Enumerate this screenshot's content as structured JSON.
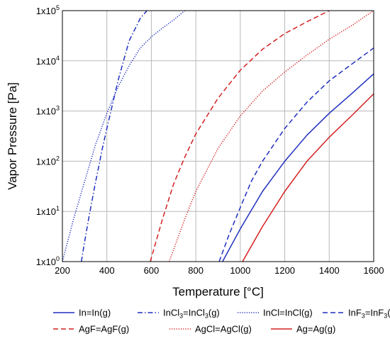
{
  "chart_data": {
    "type": "line",
    "title": "",
    "xlabel": "Temperature [°C]",
    "ylabel": "Vapor Pressure [Pa]",
    "xlim": [
      200,
      1600
    ],
    "ylim": [
      1,
      100000
    ],
    "yscale": "log",
    "grid": true,
    "legend_position": "bottom",
    "x_ticks": [
      "200",
      "400",
      "600",
      "800",
      "1000",
      "1200",
      "1400",
      "1600"
    ],
    "y_ticks": [
      {
        "base": "1x10",
        "exp": "0"
      },
      {
        "base": "1x10",
        "exp": "1"
      },
      {
        "base": "1x10",
        "exp": "2"
      },
      {
        "base": "1x10",
        "exp": "3"
      },
      {
        "base": "1x10",
        "exp": "4"
      },
      {
        "base": "1x10",
        "exp": "5"
      }
    ],
    "series": [
      {
        "name": "In=In(g)",
        "legend_parts": [
          {
            "t": "In=In(g)"
          }
        ],
        "color": "#1f2fbf",
        "dash": "solid",
        "x": [
          920,
          1000,
          1100,
          1200,
          1300,
          1400,
          1500,
          1600
        ],
        "y": [
          1,
          4.5,
          25,
          100,
          330,
          900,
          2200,
          5500
        ]
      },
      {
        "name": "InCl3=InCl3(g)",
        "legend_parts": [
          {
            "t": "InCl"
          },
          {
            "t": "3",
            "sub": true
          },
          {
            "t": "=InCl"
          },
          {
            "t": "3",
            "sub": true
          },
          {
            "t": "(g)"
          }
        ],
        "color": "#1f2fbf",
        "dash": "dashdot",
        "x": [
          285,
          300,
          320,
          350,
          380,
          400,
          450,
          500,
          550,
          580
        ],
        "y": [
          1,
          2.5,
          8,
          40,
          180,
          450,
          4000,
          25000,
          70000,
          100000
        ]
      },
      {
        "name": "InCl=InCl(g)",
        "legend_parts": [
          {
            "t": "InCl=InCl(g)"
          }
        ],
        "color": "#1f2fbf",
        "dash": "dotted",
        "x": [
          200,
          250,
          300,
          350,
          400,
          450,
          500,
          550,
          600,
          650,
          700,
          750
        ],
        "y": [
          1,
          7,
          40,
          220,
          900,
          3000,
          8000,
          18000,
          30000,
          45000,
          65000,
          100000
        ]
      },
      {
        "name": "InF3=InF3(g)",
        "legend_parts": [
          {
            "t": "InF"
          },
          {
            "t": "3",
            "sub": true
          },
          {
            "t": "=InF"
          },
          {
            "t": "3",
            "sub": true
          },
          {
            "t": "(g)"
          }
        ],
        "color": "#1f2fbf",
        "dash": "dashed",
        "x": [
          905,
          950,
          1000,
          1050,
          1100,
          1200,
          1300,
          1400,
          1500,
          1600
        ],
        "y": [
          1,
          3.5,
          12,
          40,
          100,
          450,
          1500,
          4000,
          8500,
          18000
        ]
      },
      {
        "name": "AgF=AgF(g)",
        "legend_parts": [
          {
            "t": "AgF=AgF(g)"
          }
        ],
        "color": "#d42020",
        "dash": "dashed",
        "x": [
          595,
          650,
          700,
          750,
          800,
          900,
          1000,
          1100,
          1200,
          1300,
          1400
        ],
        "y": [
          1,
          7,
          35,
          120,
          350,
          1800,
          6500,
          17000,
          35000,
          60000,
          100000
        ]
      },
      {
        "name": "AgCl=AgCl(g)",
        "legend_parts": [
          {
            "t": "AgCl=AgCl(g)"
          }
        ],
        "color": "#d42020",
        "dash": "dotted",
        "x": [
          680,
          750,
          800,
          900,
          1000,
          1100,
          1200,
          1300,
          1400,
          1500,
          1600
        ],
        "y": [
          1,
          7,
          25,
          180,
          800,
          2500,
          6000,
          13000,
          27000,
          50000,
          100000
        ]
      },
      {
        "name": "Ag=Ag(g)",
        "legend_parts": [
          {
            "t": "Ag=Ag(g)"
          }
        ],
        "color": "#d42020",
        "dash": "solid",
        "x": [
          1010,
          1100,
          1200,
          1300,
          1400,
          1500,
          1600
        ],
        "y": [
          1,
          5,
          25,
          100,
          300,
          800,
          2200
        ]
      }
    ]
  }
}
